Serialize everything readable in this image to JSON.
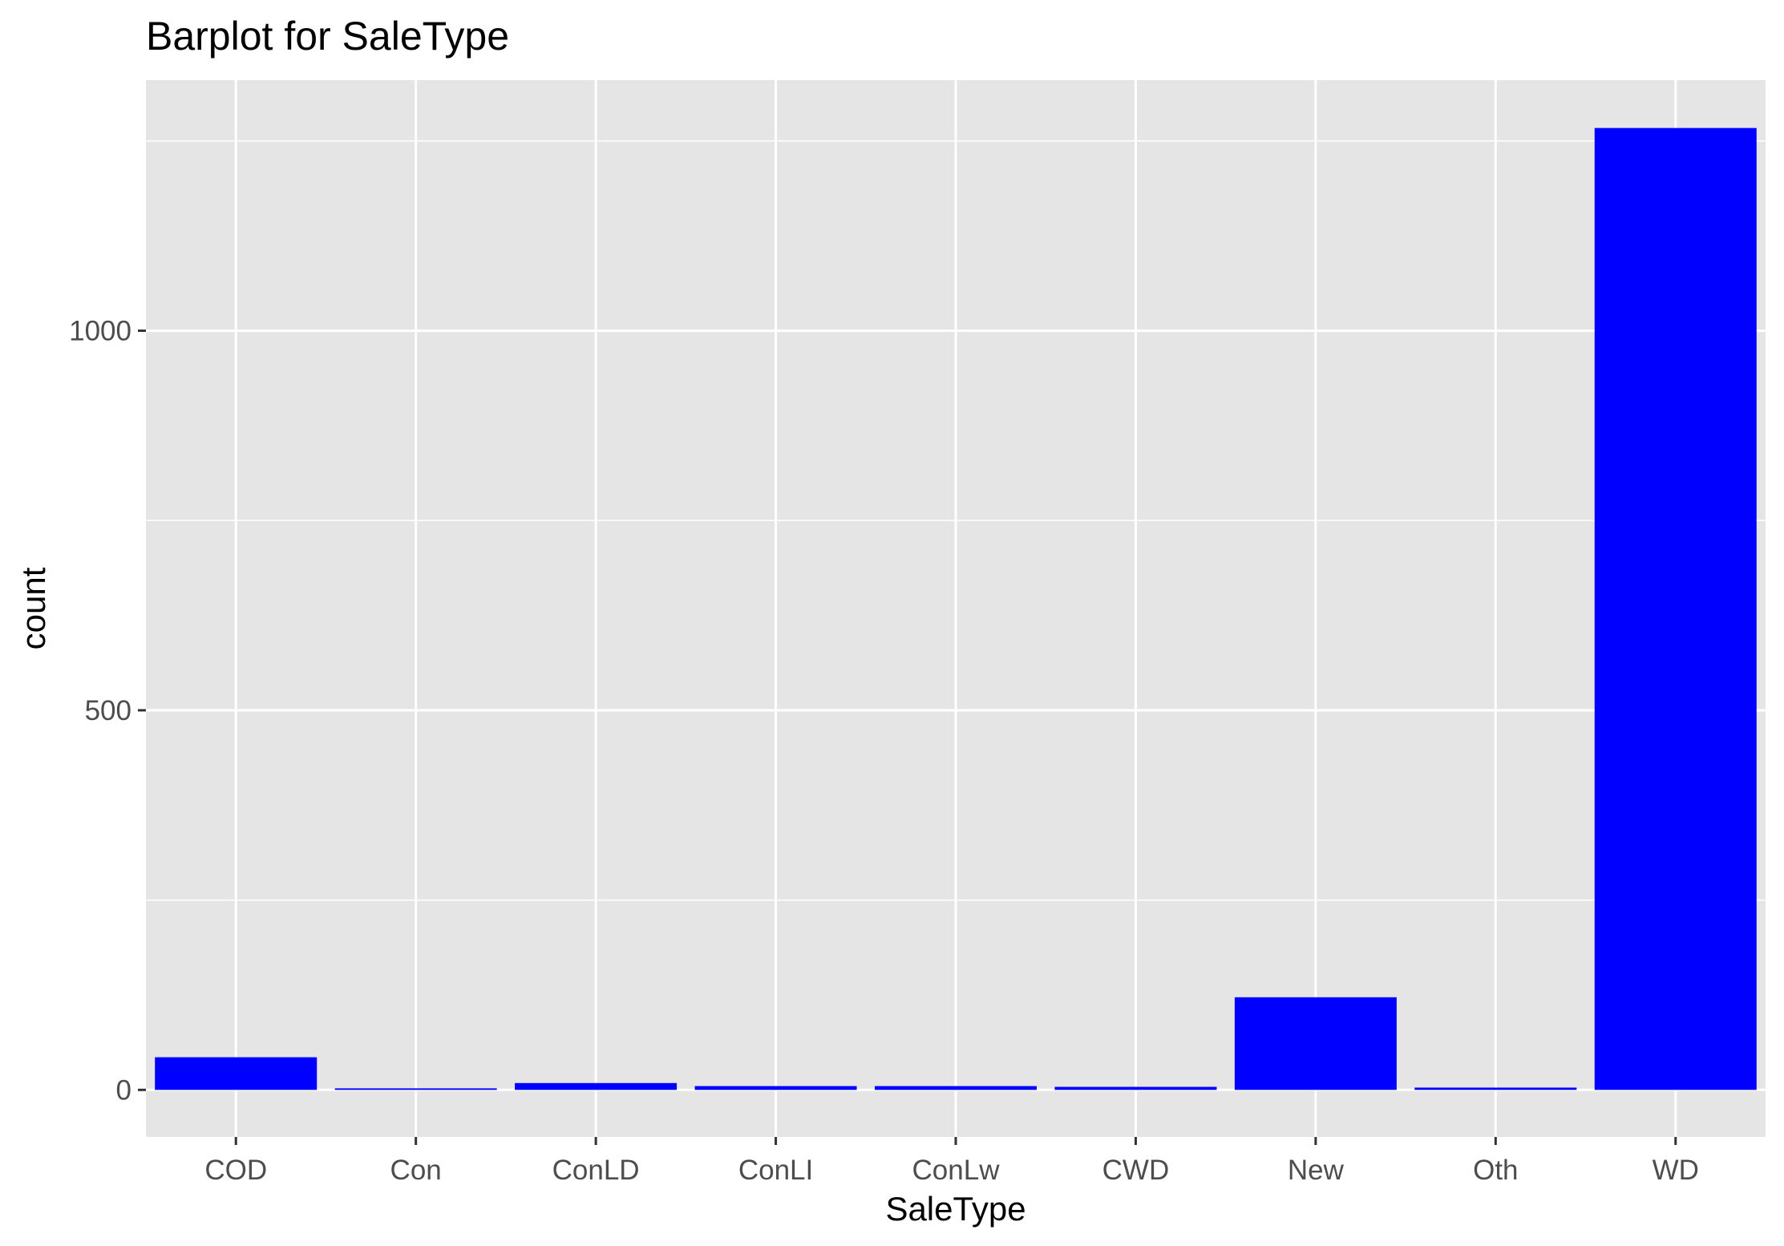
{
  "chart_data": {
    "type": "bar",
    "title": "Barplot for SaleType",
    "xlabel": "SaleType",
    "ylabel": "count",
    "categories": [
      "COD",
      "Con",
      "ConLD",
      "ConLI",
      "ConLw",
      "CWD",
      "New",
      "Oth",
      "WD"
    ],
    "values": [
      43,
      2,
      9,
      5,
      5,
      4,
      122,
      3,
      1267
    ],
    "ylim": [
      -62,
      1330
    ],
    "yticks": [
      0,
      500,
      1000
    ],
    "ytick_labels": [
      "0",
      "500",
      "1000"
    ],
    "y_minor_ticks": [
      250,
      750,
      1250
    ],
    "grid": true,
    "legend": "none",
    "colors": {
      "bar": "#0000ff",
      "panel": "#e5e5e5",
      "grid": "#ffffff"
    }
  }
}
